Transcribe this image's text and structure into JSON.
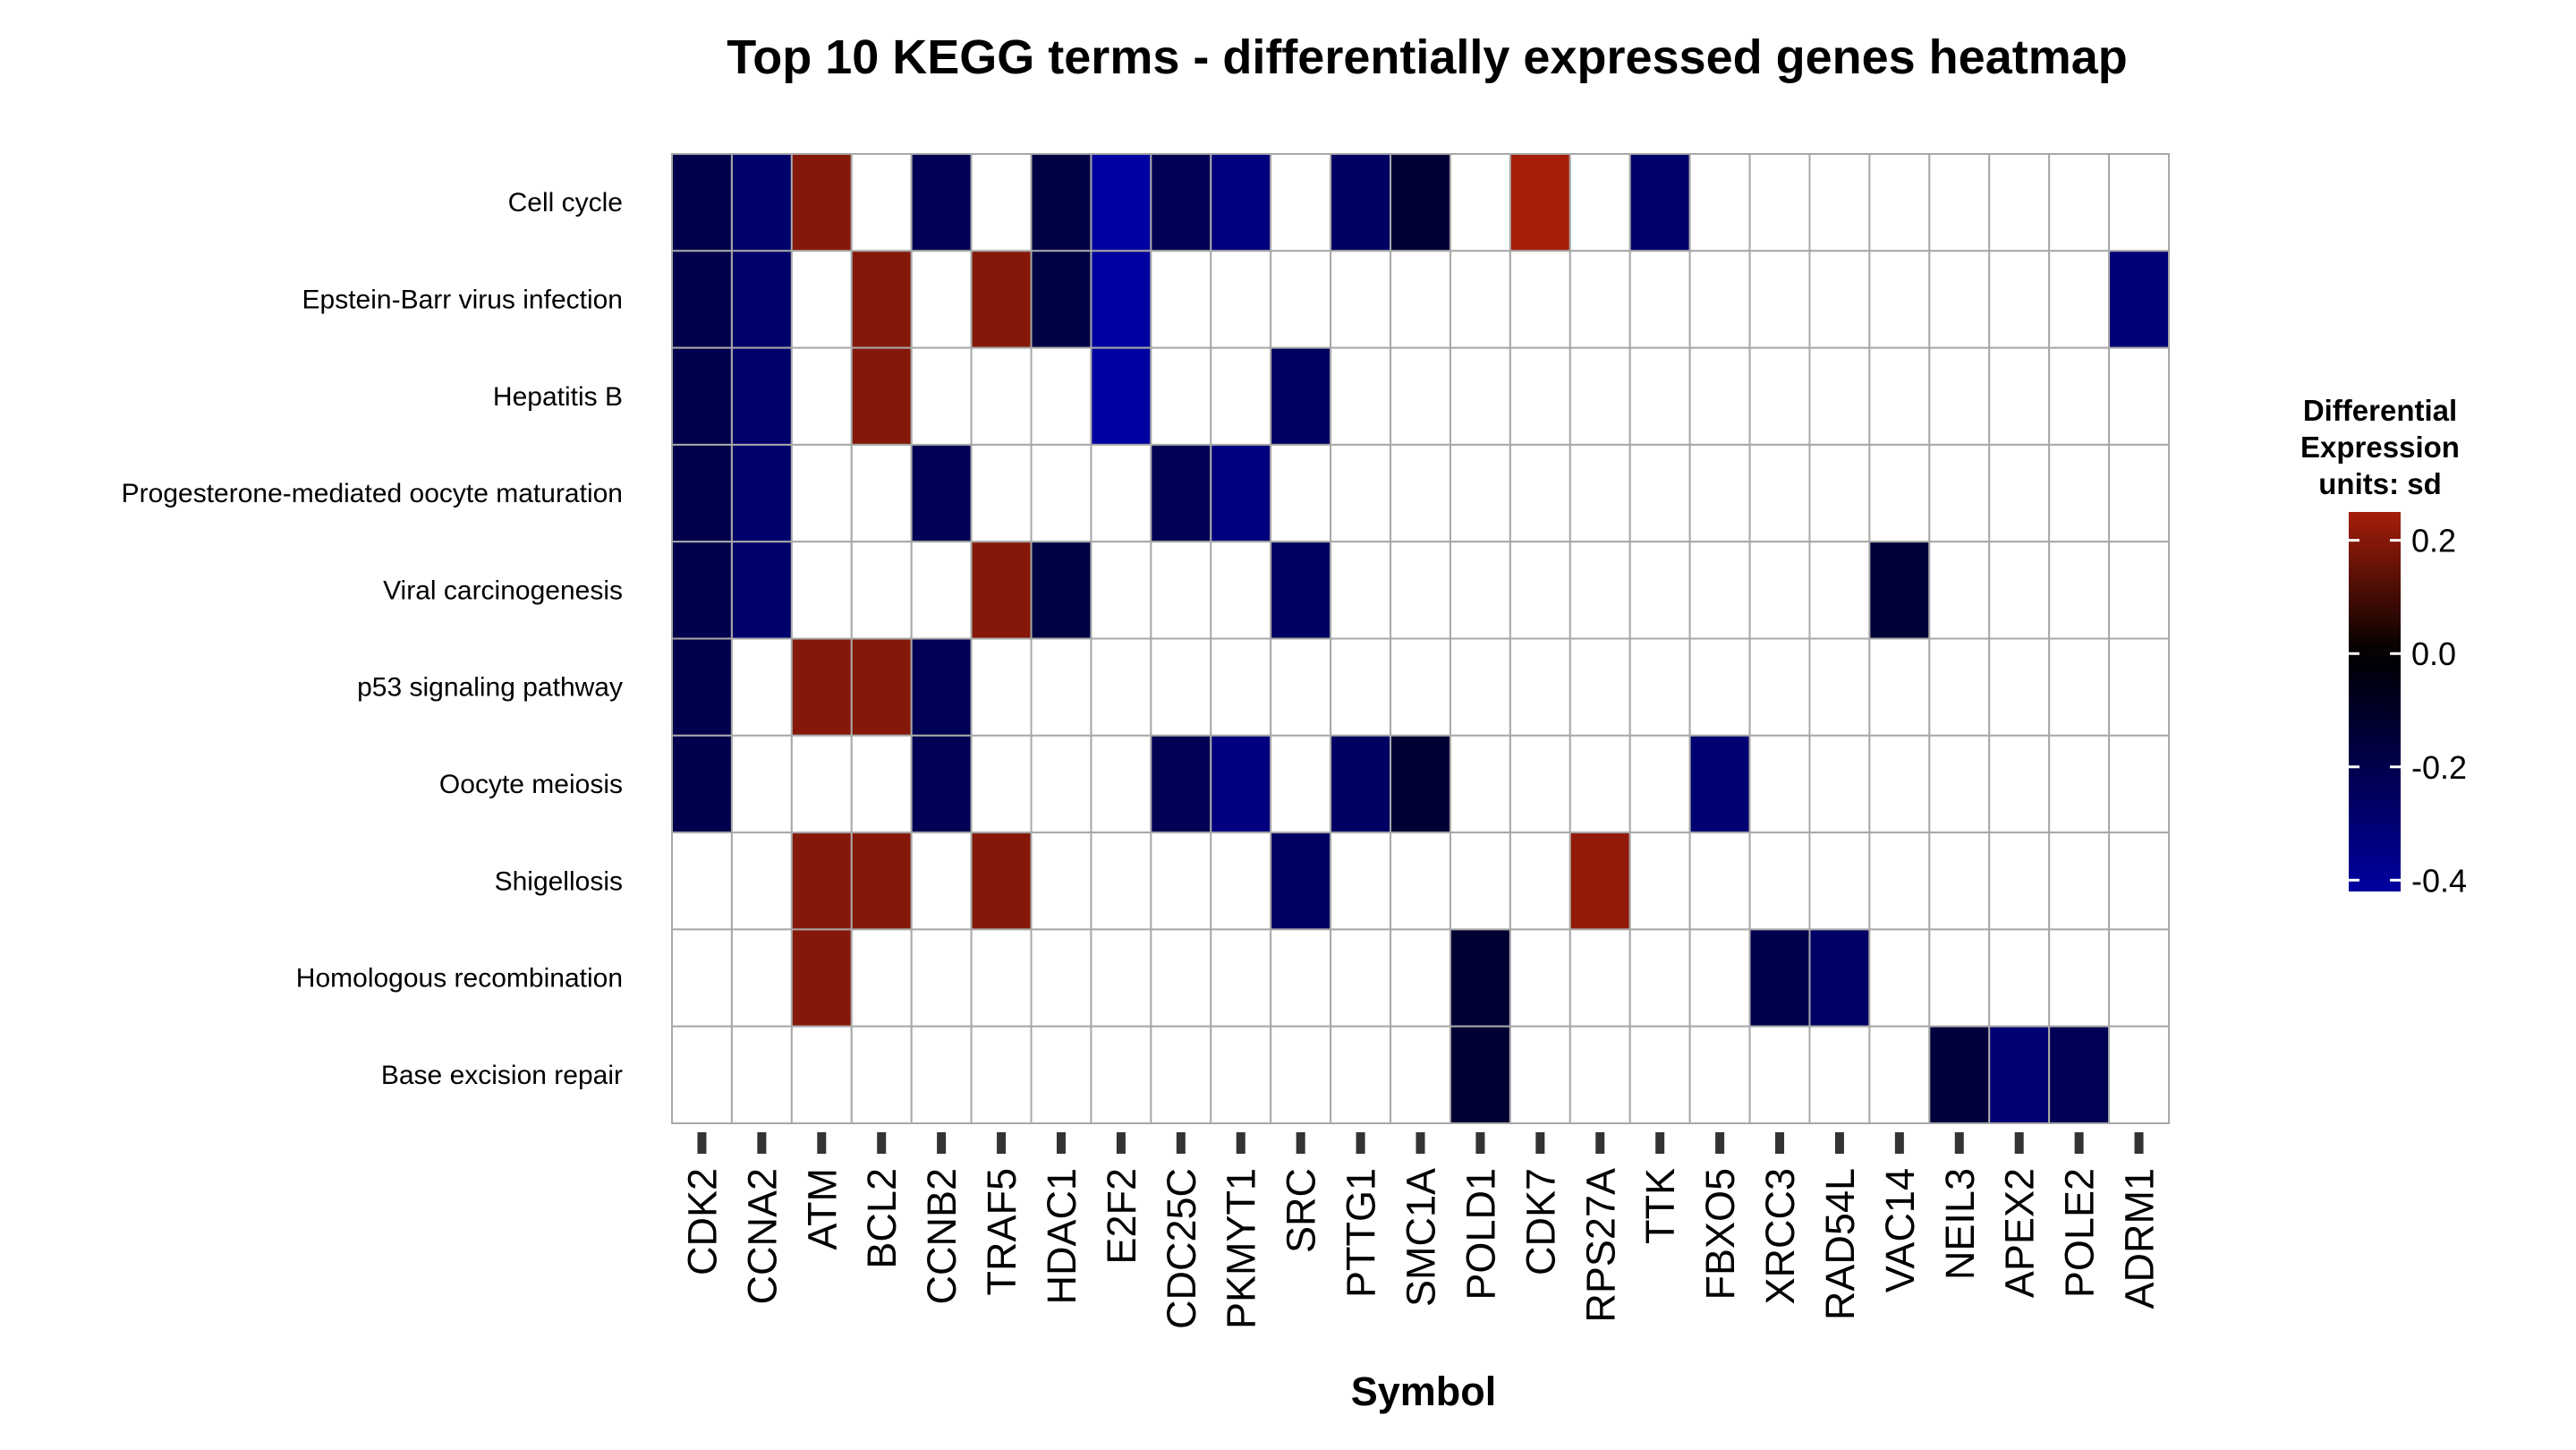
{
  "chart_data": {
    "type": "heatmap",
    "title": "Top 10 KEGG terms - differentially expressed genes heatmap",
    "xlabel": "Symbol",
    "ylabel": "",
    "x_categories": [
      "CDK2",
      "CCNA2",
      "ATM",
      "BCL2",
      "CCNB2",
      "TRAF5",
      "HDAC1",
      "E2F2",
      "CDC25C",
      "PKMYT1",
      "SRC",
      "PTTG1",
      "SMC1A",
      "POLD1",
      "CDK7",
      "RPS27A",
      "TTK",
      "FBXO5",
      "XRCC3",
      "RAD54L",
      "VAC14",
      "NEIL3",
      "APEX2",
      "POLE2",
      "ADRM1"
    ],
    "y_categories": [
      "Cell cycle",
      "Epstein-Barr virus infection",
      "Hepatitis B",
      "Progesterone-mediated oocyte maturation",
      "Viral carcinogenesis",
      "p53 signaling pathway",
      "Oocyte meiosis",
      "Shigellosis",
      "Homologous recombination",
      "Base excision repair"
    ],
    "values": [
      [
        -0.2,
        -0.28,
        0.2,
        null,
        -0.22,
        null,
        -0.18,
        -0.42,
        -0.22,
        -0.33,
        null,
        -0.26,
        -0.14,
        null,
        0.25,
        null,
        -0.28,
        null,
        null,
        null,
        null,
        null,
        null,
        null,
        null
      ],
      [
        -0.2,
        -0.28,
        null,
        0.2,
        null,
        0.2,
        -0.18,
        -0.42,
        null,
        null,
        null,
        null,
        null,
        null,
        null,
        null,
        null,
        null,
        null,
        null,
        null,
        null,
        null,
        null,
        -0.31
      ],
      [
        -0.2,
        -0.28,
        null,
        0.2,
        null,
        null,
        null,
        -0.42,
        null,
        null,
        -0.26,
        null,
        null,
        null,
        null,
        null,
        null,
        null,
        null,
        null,
        null,
        null,
        null,
        null,
        null
      ],
      [
        -0.2,
        -0.28,
        null,
        null,
        -0.22,
        null,
        null,
        null,
        -0.22,
        -0.33,
        null,
        null,
        null,
        null,
        null,
        null,
        null,
        null,
        null,
        null,
        null,
        null,
        null,
        null,
        null
      ],
      [
        -0.2,
        -0.28,
        null,
        null,
        null,
        0.2,
        -0.18,
        null,
        null,
        null,
        -0.26,
        null,
        null,
        null,
        null,
        null,
        null,
        null,
        null,
        null,
        -0.15,
        null,
        null,
        null,
        null
      ],
      [
        -0.2,
        null,
        0.2,
        0.2,
        -0.22,
        null,
        null,
        null,
        null,
        null,
        null,
        null,
        null,
        null,
        null,
        null,
        null,
        null,
        null,
        null,
        null,
        null,
        null,
        null,
        null
      ],
      [
        -0.2,
        null,
        null,
        null,
        -0.22,
        null,
        null,
        null,
        -0.22,
        -0.33,
        null,
        -0.26,
        -0.14,
        null,
        null,
        null,
        null,
        -0.3,
        null,
        null,
        null,
        null,
        null,
        null,
        null
      ],
      [
        null,
        null,
        0.2,
        0.2,
        null,
        0.2,
        null,
        null,
        null,
        null,
        -0.26,
        null,
        null,
        null,
        null,
        0.22,
        null,
        null,
        null,
        null,
        null,
        null,
        null,
        null,
        null
      ],
      [
        null,
        null,
        0.2,
        null,
        null,
        null,
        null,
        null,
        null,
        null,
        null,
        null,
        null,
        -0.13,
        null,
        null,
        null,
        null,
        -0.2,
        -0.27,
        null,
        null,
        null,
        null,
        null
      ],
      [
        null,
        null,
        null,
        null,
        null,
        null,
        null,
        null,
        null,
        null,
        null,
        null,
        null,
        -0.13,
        null,
        null,
        null,
        null,
        null,
        null,
        null,
        -0.16,
        -0.3,
        -0.22,
        null
      ]
    ],
    "color_scale": {
      "low": "#0000a0",
      "mid": "#000000",
      "high": "#a61e0a",
      "min": -0.42,
      "max": 0.25,
      "missing": "#ffffff",
      "grid": "#a8a8a8"
    },
    "legend": {
      "title_lines": [
        "Differential",
        "Expression",
        "units: sd"
      ],
      "ticks": [
        0.2,
        0.0,
        -0.2,
        -0.4
      ],
      "tick_labels": [
        "0.2",
        "0.0",
        "-0.2",
        "-0.4"
      ],
      "position": "right"
    }
  }
}
